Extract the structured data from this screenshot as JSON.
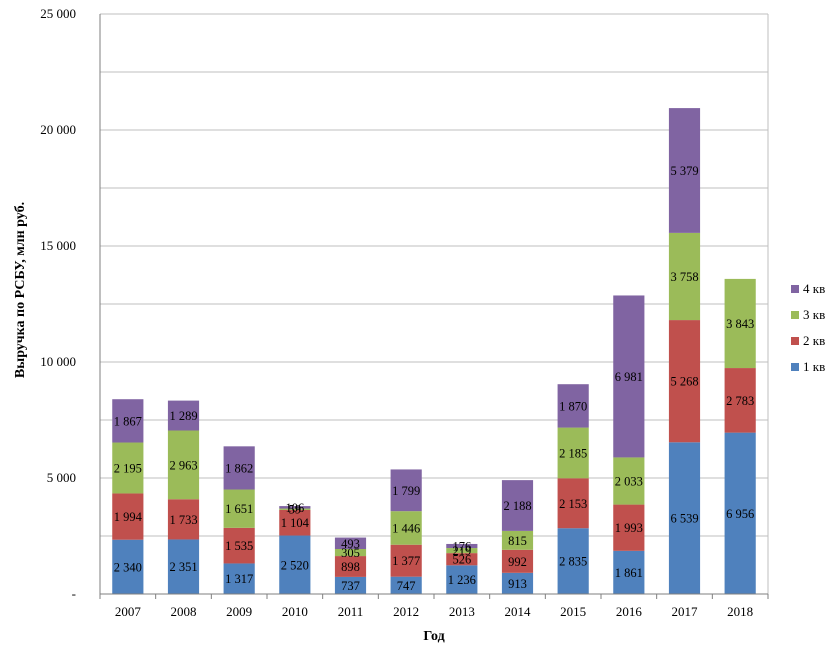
{
  "chart_data": {
    "type": "bar",
    "stacked": true,
    "xlabel": "Год",
    "ylabel": "Выручка по РСБУ, млн руб.",
    "ylim": [
      0,
      25000
    ],
    "ytick_values": [
      0,
      5000,
      10000,
      15000,
      20000,
      25000
    ],
    "ytick_labels": [
      "-",
      "5 000",
      "10 000",
      "15 000",
      "20 000",
      "25 000"
    ],
    "grid": true,
    "legend_position": "right",
    "categories": [
      "2007",
      "2008",
      "2009",
      "2010",
      "2011",
      "2012",
      "2013",
      "2014",
      "2015",
      "2016",
      "2017",
      "2018"
    ],
    "series": [
      {
        "name": "1 кв",
        "color": "#4F81BD",
        "values": [
          2340,
          2351,
          1317,
          2520,
          737,
          747,
          1236,
          913,
          2835,
          1861,
          6539,
          6956
        ],
        "labels": [
          "2 340",
          "2 351",
          "1 317",
          "2 520",
          "737",
          "747",
          "1 236",
          "913",
          "2 835",
          "1 861",
          "6 539",
          "6 956"
        ]
      },
      {
        "name": "2 кв",
        "color": "#C0504D",
        "values": [
          1994,
          1733,
          1535,
          1104,
          898,
          1377,
          526,
          992,
          2153,
          1993,
          5268,
          2783
        ],
        "labels": [
          "1 994",
          "1 733",
          "1 535",
          "1 104",
          "898",
          "1 377",
          "526",
          "992",
          "2 153",
          "1 993",
          "5 268",
          "2 783"
        ]
      },
      {
        "name": "3 кв",
        "color": "#9BBB59",
        "values": [
          2195,
          2963,
          1651,
          59,
          305,
          1446,
          219,
          815,
          2185,
          2033,
          3758,
          3843
        ],
        "labels": [
          "2 195",
          "2 963",
          "1 651",
          "59",
          "305",
          "1 446",
          "219",
          "815",
          "2 185",
          "2 033",
          "3 758",
          "3 843"
        ]
      },
      {
        "name": "4 кв",
        "color": "#8064A2",
        "values": [
          1867,
          1289,
          1862,
          106,
          493,
          1799,
          176,
          2188,
          1870,
          6981,
          5379,
          null
        ],
        "labels": [
          "1 867",
          "1 289",
          "1 862",
          "106",
          "493",
          "1 799",
          "176",
          "2 188",
          "1 870",
          "6 981",
          "5 379",
          null
        ]
      }
    ]
  }
}
